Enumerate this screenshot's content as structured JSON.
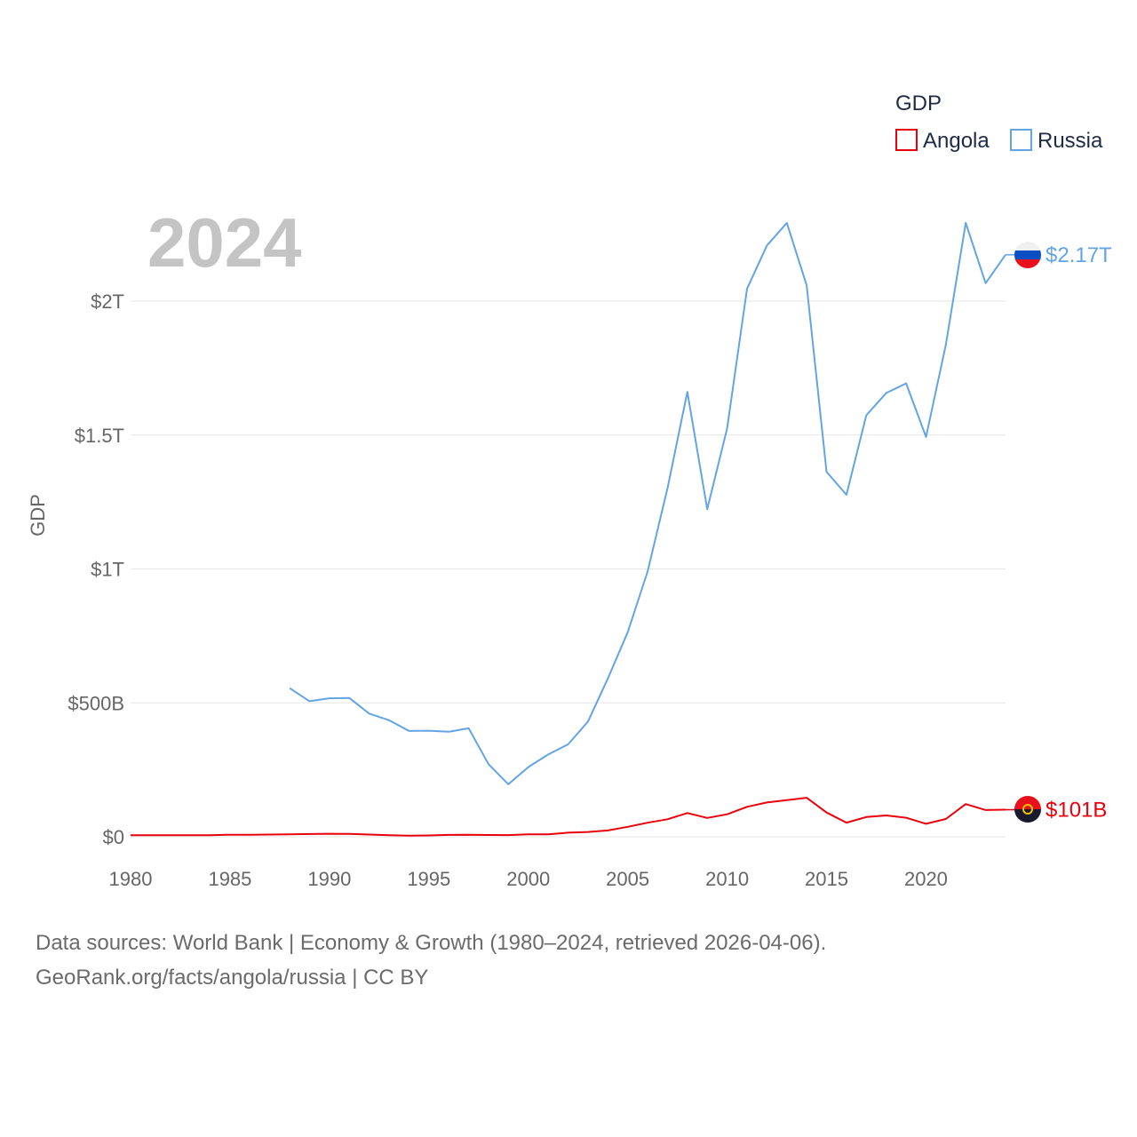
{
  "chart_data": {
    "type": "line",
    "title": "GDP",
    "year_label": "2024",
    "xlabel": "",
    "ylabel": "GDP",
    "xlim": [
      1980,
      2024
    ],
    "ylim": [
      0,
      2300
    ],
    "x_ticks": [
      1980,
      1985,
      1990,
      1995,
      2000,
      2005,
      2010,
      2015,
      2020
    ],
    "y_ticks": [
      {
        "value": 0,
        "label": "$0"
      },
      {
        "value": 500,
        "label": "$500B"
      },
      {
        "value": 1000,
        "label": "$1T"
      },
      {
        "value": 1500,
        "label": "$1.5T"
      },
      {
        "value": 2000,
        "label": "$2T"
      }
    ],
    "legend": {
      "title": "GDP",
      "position": "top-right"
    },
    "units": "billions USD",
    "series": [
      {
        "name": "Angola",
        "color": "#e8000b",
        "end_label": "$101B",
        "points": [
          [
            1980,
            5.9
          ],
          [
            1981,
            5.6
          ],
          [
            1982,
            5.6
          ],
          [
            1983,
            5.8
          ],
          [
            1984,
            6.1
          ],
          [
            1985,
            7.6
          ],
          [
            1986,
            7.3
          ],
          [
            1987,
            8.2
          ],
          [
            1988,
            8.9
          ],
          [
            1989,
            10.3
          ],
          [
            1990,
            11.2
          ],
          [
            1991,
            10.6
          ],
          [
            1992,
            8.3
          ],
          [
            1993,
            5.9
          ],
          [
            1994,
            4.1
          ],
          [
            1995,
            5.0
          ],
          [
            1996,
            7.0
          ],
          [
            1997,
            7.7
          ],
          [
            1998,
            6.5
          ],
          [
            1999,
            6.2
          ],
          [
            2000,
            9.1
          ],
          [
            2001,
            8.9
          ],
          [
            2002,
            15.3
          ],
          [
            2003,
            17.8
          ],
          [
            2004,
            23.6
          ],
          [
            2005,
            37.0
          ],
          [
            2006,
            52.4
          ],
          [
            2007,
            65.3
          ],
          [
            2008,
            88.5
          ],
          [
            2009,
            70.3
          ],
          [
            2010,
            83.8
          ],
          [
            2011,
            111.8
          ],
          [
            2012,
            128.1
          ],
          [
            2013,
            136.7
          ],
          [
            2014,
            145.7
          ],
          [
            2015,
            90.5
          ],
          [
            2016,
            52.8
          ],
          [
            2017,
            73.7
          ],
          [
            2018,
            79.5
          ],
          [
            2019,
            70.9
          ],
          [
            2020,
            48.5
          ],
          [
            2021,
            66.5
          ],
          [
            2022,
            122.0
          ],
          [
            2023,
            100.0
          ],
          [
            2024,
            101.0
          ]
        ]
      },
      {
        "name": "Russia",
        "color": "#63a4e4",
        "end_label": "$2.17T",
        "points": [
          [
            1988,
            555
          ],
          [
            1989,
            506
          ],
          [
            1990,
            517
          ],
          [
            1991,
            518
          ],
          [
            1992,
            460
          ],
          [
            1993,
            435
          ],
          [
            1994,
            395
          ],
          [
            1995,
            396
          ],
          [
            1996,
            392
          ],
          [
            1997,
            405
          ],
          [
            1998,
            271
          ],
          [
            1999,
            196
          ],
          [
            2000,
            260
          ],
          [
            2001,
            307
          ],
          [
            2002,
            345
          ],
          [
            2003,
            430
          ],
          [
            2004,
            591
          ],
          [
            2005,
            764
          ],
          [
            2006,
            990
          ],
          [
            2007,
            1300
          ],
          [
            2008,
            1661
          ],
          [
            2009,
            1223
          ],
          [
            2010,
            1525
          ],
          [
            2011,
            2046
          ],
          [
            2012,
            2208
          ],
          [
            2013,
            2292
          ],
          [
            2014,
            2059
          ],
          [
            2015,
            1363
          ],
          [
            2016,
            1277
          ],
          [
            2017,
            1574
          ],
          [
            2018,
            1657
          ],
          [
            2019,
            1693
          ],
          [
            2020,
            1493
          ],
          [
            2021,
            1837
          ],
          [
            2022,
            2292
          ],
          [
            2023,
            2067
          ],
          [
            2024,
            2173
          ]
        ]
      }
    ]
  },
  "footer": {
    "line1": "Data sources: World Bank | Economy & Growth (1980–2024, retrieved 2026-04-06).",
    "line2": "GeoRank.org/facts/angola/russia | CC BY"
  }
}
